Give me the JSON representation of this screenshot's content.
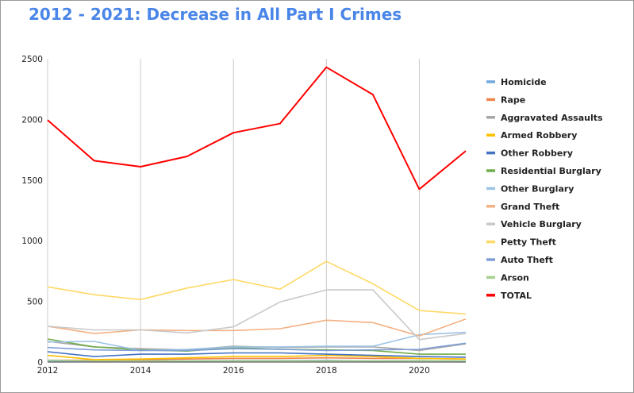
{
  "chart_data": {
    "type": "line",
    "title": "2012 - 2021: Decrease in All Part I Crimes",
    "xlabel": "",
    "ylabel": "",
    "x": [
      2012,
      2013,
      2014,
      2015,
      2016,
      2017,
      2018,
      2019,
      2020,
      2021
    ],
    "x_ticks": [
      2012,
      2014,
      2016,
      2018,
      2020
    ],
    "y_ticks": [
      0,
      500,
      1000,
      1500,
      2000,
      2500
    ],
    "xlim": [
      2012,
      2021
    ],
    "ylim": [
      0,
      2500
    ],
    "grid": "vertical",
    "legend_position": "right",
    "series": [
      {
        "name": "Homicide",
        "color": "#6fa8dc",
        "values": [
          10,
          10,
          12,
          10,
          12,
          12,
          14,
          10,
          12,
          10
        ]
      },
      {
        "name": "Rape",
        "color": "#f1844b",
        "values": [
          15,
          15,
          20,
          25,
          30,
          30,
          35,
          30,
          30,
          25
        ]
      },
      {
        "name": "Aggravated Assaults",
        "color": "#a6a6a6",
        "values": [
          170,
          125,
          110,
          100,
          130,
          120,
          125,
          125,
          95,
          150
        ]
      },
      {
        "name": "Armed Robbery",
        "color": "#ffc000",
        "values": [
          55,
          20,
          25,
          35,
          45,
          45,
          55,
          45,
          30,
          25
        ]
      },
      {
        "name": "Other Robbery",
        "color": "#4472c4",
        "values": [
          85,
          45,
          65,
          65,
          75,
          75,
          65,
          55,
          45,
          40
        ]
      },
      {
        "name": "Residential Burglary",
        "color": "#70ad47",
        "values": [
          190,
          125,
          100,
          90,
          120,
          105,
          100,
          95,
          65,
          65
        ]
      },
      {
        "name": "Other Burglary",
        "color": "#9dc3e6",
        "values": [
          165,
          170,
          95,
          105,
          125,
          125,
          130,
          130,
          225,
          245
        ]
      },
      {
        "name": "Grand Theft",
        "color": "#f4b183",
        "values": [
          295,
          235,
          265,
          260,
          260,
          275,
          345,
          325,
          215,
          355
        ]
      },
      {
        "name": "Vehicle Burglary",
        "color": "#c9c9c9",
        "values": [
          295,
          265,
          265,
          240,
          290,
          495,
          595,
          595,
          185,
          235
        ]
      },
      {
        "name": "Petty Theft",
        "color": "#ffd966",
        "values": [
          620,
          555,
          515,
          610,
          680,
          600,
          830,
          645,
          425,
          395
        ]
      },
      {
        "name": "Auto Theft",
        "color": "#7f9fd8",
        "values": [
          120,
          100,
          95,
          95,
          110,
          105,
          95,
          100,
          105,
          155
        ]
      },
      {
        "name": "Arson",
        "color": "#a9d18e",
        "values": [
          15,
          10,
          10,
          10,
          10,
          10,
          10,
          10,
          10,
          10
        ]
      },
      {
        "name": "TOTAL",
        "color": "#ff0000",
        "values": [
          1995,
          1660,
          1610,
          1695,
          1890,
          1965,
          2430,
          2205,
          1425,
          1740
        ]
      }
    ]
  }
}
